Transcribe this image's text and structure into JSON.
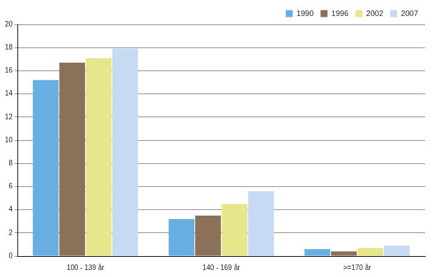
{
  "chart_data": {
    "type": "bar",
    "categories": [
      "100 - 139 år",
      "140 - 169 år",
      ">=170 år"
    ],
    "series": [
      {
        "name": "1990",
        "color": "#67aee3",
        "values": [
          15.2,
          3.2,
          0.6
        ]
      },
      {
        "name": "1996",
        "color": "#8b7157",
        "values": [
          16.7,
          3.5,
          0.4
        ]
      },
      {
        "name": "2002",
        "color": "#e8e68b",
        "values": [
          17.1,
          4.5,
          0.7
        ]
      },
      {
        "name": "2007",
        "color": "#c6daf3",
        "values": [
          17.9,
          5.6,
          0.9
        ]
      }
    ],
    "ylim": [
      0,
      20
    ],
    "yticks": [
      0,
      2,
      4,
      6,
      8,
      10,
      12,
      14,
      16,
      18,
      20
    ],
    "grid": true,
    "legend": "top right"
  }
}
